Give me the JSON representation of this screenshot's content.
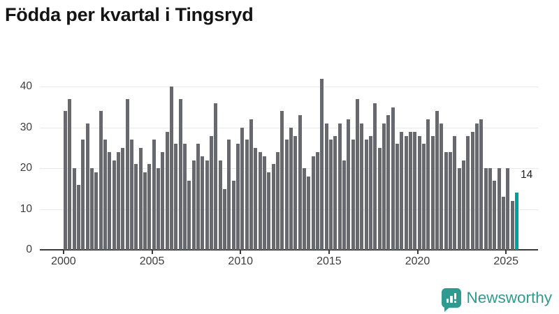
{
  "title": "Födda per kvartal i Tingsryd",
  "chart_data": {
    "type": "bar",
    "title": "Födda per kvartal i Tingsryd",
    "x_frequency": "quarterly",
    "x_start": "2000 Q1",
    "x_end": "2025 Q3",
    "values": [
      34,
      37,
      20,
      16,
      27,
      31,
      20,
      19,
      34,
      27,
      24,
      22,
      24,
      25,
      37,
      27,
      21,
      25,
      19,
      21,
      27,
      20,
      24,
      29,
      40,
      26,
      37,
      26,
      17,
      22,
      26,
      23,
      22,
      28,
      36,
      22,
      15,
      27,
      17,
      26,
      30,
      27,
      32,
      25,
      24,
      23,
      19,
      21,
      24,
      34,
      27,
      30,
      28,
      33,
      20,
      18,
      23,
      24,
      42,
      31,
      27,
      28,
      31,
      22,
      32,
      27,
      37,
      31,
      27,
      28,
      36,
      25,
      31,
      33,
      35,
      26,
      29,
      28,
      29,
      29,
      28,
      26,
      32,
      28,
      34,
      31,
      24,
      24,
      28,
      20,
      22,
      28,
      29,
      31,
      32,
      20,
      20,
      17,
      20,
      13,
      20,
      12,
      14
    ],
    "highlight_last_value": 14,
    "annotation": "14",
    "y_ticks": [
      0,
      10,
      20,
      30,
      40
    ],
    "x_ticks": [
      2000,
      2005,
      2010,
      2015,
      2020,
      2025
    ],
    "ylim": [
      0,
      43
    ],
    "grid": true,
    "legend": "none"
  },
  "colors": {
    "bar": "#68696e",
    "highlight": "#00a0a0",
    "grid": "#e8e8e8",
    "axis": "#3a3a3a",
    "tick_text": "#3d3d3d",
    "title_text": "#141414",
    "brand": "#2f9b90"
  },
  "branding": {
    "name": "Newsworthy"
  }
}
